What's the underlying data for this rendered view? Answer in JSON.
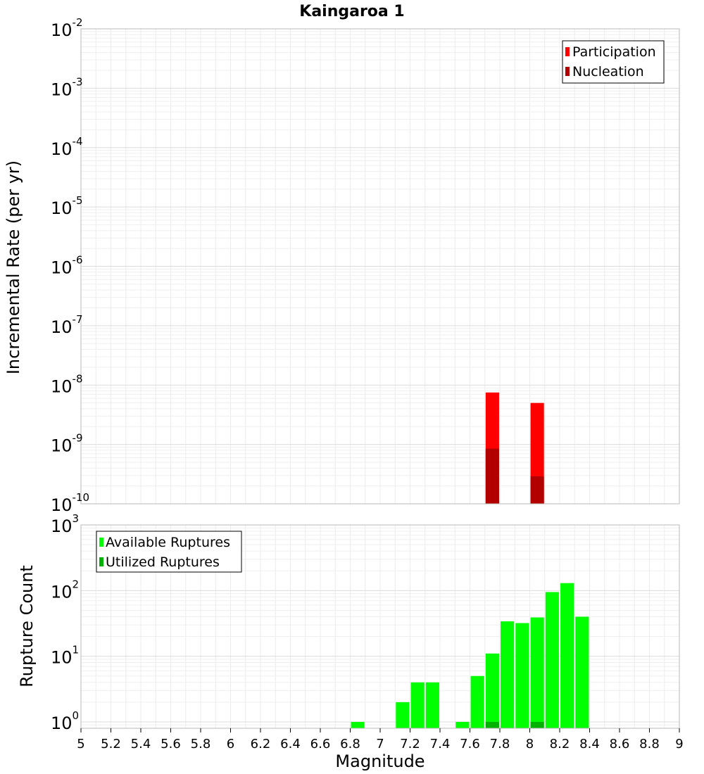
{
  "chart_data": [
    {
      "type": "bar",
      "title": "Kaingaroa 1",
      "xlabel": "",
      "ylabel": "Incremental Rate (per yr)",
      "yscale": "log",
      "ylim": [
        1e-10,
        0.01
      ],
      "ytick_exponents": [
        -10,
        -9,
        -8,
        -7,
        -6,
        -5,
        -4,
        -3,
        -2
      ],
      "xlim": [
        5,
        9
      ],
      "bar_width": 0.09,
      "grid": true,
      "legend": {
        "placement": "top-right",
        "entries": [
          "Participation",
          "Nucleation"
        ]
      },
      "series": [
        {
          "name": "Participation",
          "color": "#ff0000",
          "x": [
            7.75,
            8.05
          ],
          "values": [
            7.5e-09,
            5e-09
          ]
        },
        {
          "name": "Nucleation",
          "color": "#b20000",
          "x": [
            7.75,
            8.05
          ],
          "values": [
            8.5e-10,
            2.9e-10
          ]
        }
      ]
    },
    {
      "type": "bar",
      "title": "",
      "xlabel": "Magnitude",
      "ylabel": "Rupture Count",
      "yscale": "log",
      "ylim": [
        0.8,
        1000
      ],
      "ytick_exponents": [
        0,
        1,
        2,
        3
      ],
      "xlim": [
        5,
        9
      ],
      "xticks": [
        "5",
        "5.2",
        "5.4",
        "5.6",
        "5.8",
        "6",
        "6.2",
        "6.4",
        "6.6",
        "6.8",
        "7",
        "7.2",
        "7.4",
        "7.6",
        "7.8",
        "8",
        "8.2",
        "8.4",
        "8.6",
        "8.8",
        "9"
      ],
      "bar_width": 0.09,
      "grid": true,
      "legend": {
        "placement": "top-left",
        "entries": [
          "Available Ruptures",
          "Utilized Ruptures"
        ]
      },
      "series": [
        {
          "name": "Available Ruptures",
          "color": "#00ff00",
          "x": [
            6.85,
            7.15,
            7.25,
            7.35,
            7.55,
            7.65,
            7.75,
            7.85,
            7.95,
            8.05,
            8.15,
            8.25,
            8.35
          ],
          "values": [
            1,
            2,
            4,
            4,
            1,
            5,
            11,
            34,
            32,
            39,
            95,
            130,
            40
          ]
        },
        {
          "name": "Utilized Ruptures",
          "color": "#00b200",
          "x": [
            7.75,
            8.05
          ],
          "values": [
            1,
            1
          ]
        }
      ]
    }
  ]
}
